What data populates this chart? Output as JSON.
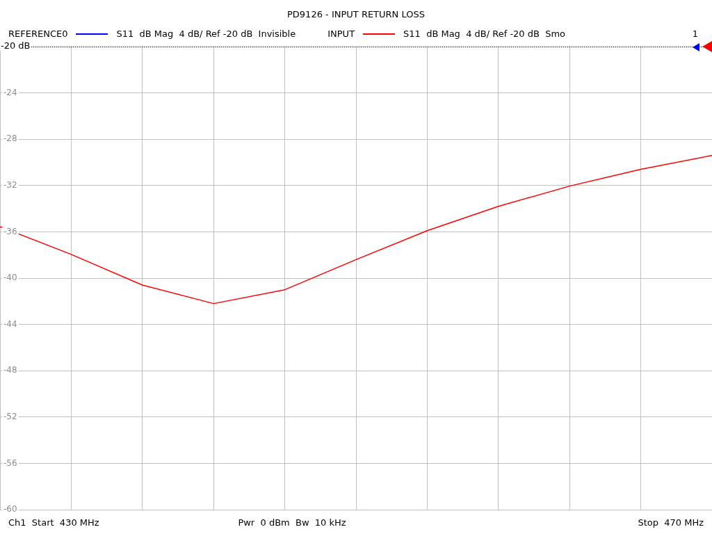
{
  "chart_data": {
    "type": "line",
    "title": "PD9126 - INPUT RETURN LOSS",
    "categories": [
      null,
      null,
      null,
      null,
      null,
      null,
      null,
      null,
      null,
      null,
      null
    ],
    "series": [
      {
        "name": "S11  dB Mag  4 dB/ Ref -20 dB  Invisible",
        "color": "#0000ff",
        "values": [
          null,
          null,
          null,
          null,
          null,
          null,
          null,
          null,
          null,
          null,
          null
        ]
      },
      {
        "name": "S11  dB Mag  4 dB/ Ref -20 dB  Smo",
        "color": "#ff0000",
        "values": [
          -35.55,
          -37.95,
          -40.6,
          -42.2,
          -41.0,
          -38.4,
          -35.9,
          -33.8,
          -32.05,
          -30.6,
          -29.4
        ]
      }
    ],
    "ylim": [
      -60,
      -20
    ],
    "yticks": [
      {
        "value": -20,
        "label": null
      },
      -24,
      -28,
      -32,
      -36,
      -40,
      -44,
      -48,
      -52,
      -56,
      -60
    ],
    "tick_labels": "y",
    "grid": true,
    "legend": "top",
    "marker": "none",
    "line_style": "solid",
    "ref_lines": [
      {
        "axis": "y",
        "value": -20,
        "label": "-20 dB",
        "line_style": "dotted",
        "color": "#000000"
      }
    ],
    "annotations": [
      "REFERENCE0",
      "INPUT",
      "1",
      "Ch1  Start  430 MHz",
      "Pwr  0 dBm  Bw  10 kHz",
      "Stop  470 MHz"
    ]
  }
}
